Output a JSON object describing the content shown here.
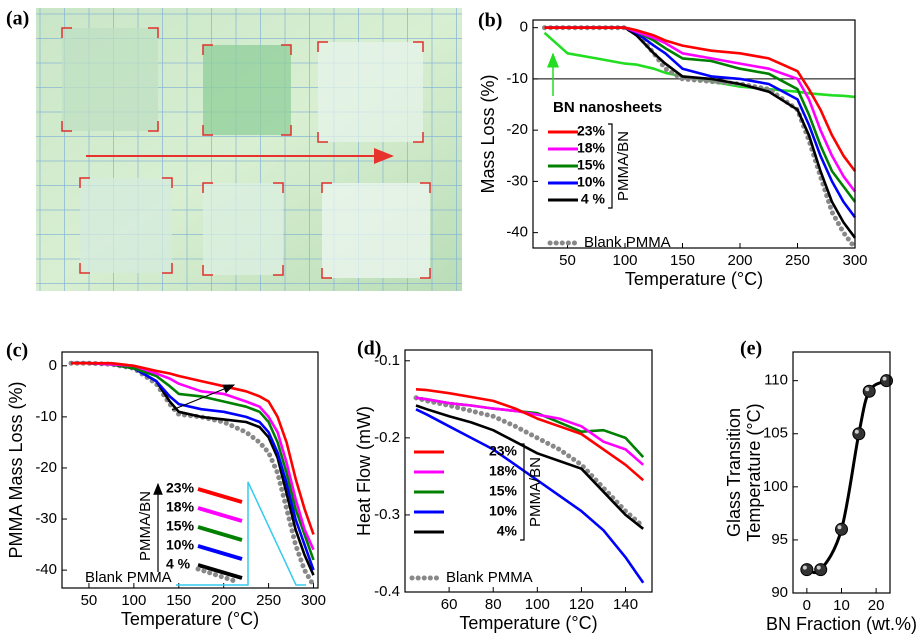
{
  "photo": {
    "label": "(a)"
  },
  "chart_data": [
    {
      "type": "line",
      "label": "(b)",
      "xlabel": "Temperature (°C)",
      "ylabel": "Mass Loss (%)",
      "x": [
        30,
        50,
        75,
        100,
        110,
        125,
        135,
        150,
        175,
        200,
        225,
        250,
        260,
        270,
        280,
        290,
        300
      ],
      "xlim": [
        20,
        300
      ],
      "xticks": [
        50,
        100,
        150,
        200,
        250,
        300
      ],
      "ylim": [
        -43,
        1.5
      ],
      "yticks": [
        0,
        -10,
        -20,
        -30,
        -40
      ],
      "hline": -10,
      "legend_title": "PMMA/BN",
      "series": [
        {
          "name": "23%",
          "color": "#ff0000",
          "values": [
            0,
            0,
            0,
            0,
            -0.5,
            -1.5,
            -2.5,
            -3.5,
            -4.5,
            -5,
            -6,
            -8.5,
            -12,
            -16,
            -21,
            -25,
            -28
          ]
        },
        {
          "name": "18%",
          "color": "#ff00ff",
          "values": [
            0,
            0,
            0,
            0,
            -0.8,
            -2,
            -3,
            -5,
            -6,
            -7,
            -8,
            -10,
            -14,
            -20,
            -25,
            -29,
            -32
          ]
        },
        {
          "name": "15%",
          "color": "#008000",
          "values": [
            0,
            0,
            0,
            0,
            -0.8,
            -2.5,
            -4,
            -6,
            -6.5,
            -8,
            -9,
            -12,
            -17,
            -23,
            -28,
            -31,
            -34
          ]
        },
        {
          "name": "10%",
          "color": "#0000ff",
          "values": [
            0,
            0,
            0,
            0,
            -1,
            -3.5,
            -5,
            -8,
            -9.5,
            -10,
            -11,
            -14,
            -19,
            -25,
            -30,
            -34,
            -37
          ]
        },
        {
          "name": "4 %",
          "color": "#000000",
          "values": [
            0,
            0,
            0,
            0,
            -1.5,
            -5,
            -7,
            -9.5,
            -10,
            -11,
            -12.5,
            -16,
            -21,
            -28,
            -34,
            -38,
            -41
          ]
        },
        {
          "name": "Blank PMMA",
          "color": "#888888",
          "dash": "dotted",
          "values": [
            0,
            0,
            0,
            0,
            -1,
            -5,
            -8,
            -10,
            -10.5,
            -11,
            -12,
            -16,
            -22,
            -29,
            -36,
            -40,
            -43
          ]
        }
      ],
      "annotation_series": {
        "name": "BN nanosheets",
        "color": "#22dd22",
        "values": [
          -1,
          -5,
          -6,
          -7,
          -7.2,
          -8,
          -8.8,
          -9.5,
          -10.5,
          -11.5,
          -12,
          -12.5,
          -12.8,
          -13,
          -13.2,
          -13.3,
          -13.5
        ]
      }
    },
    {
      "type": "line",
      "label": "(c)",
      "xlabel": "Temperature (°C)",
      "ylabel": "PMMA Mass Loss (%)",
      "x": [
        30,
        50,
        75,
        100,
        125,
        140,
        150,
        175,
        200,
        225,
        240,
        250,
        260,
        270,
        280,
        290,
        300
      ],
      "xlim": [
        20,
        305
      ],
      "xticks": [
        50,
        100,
        150,
        200,
        250,
        300
      ],
      "ylim": [
        -43.5,
        2.7
      ],
      "yticks": [
        0,
        -10,
        -20,
        -30,
        -40
      ],
      "legend_title": "PMMA/BN",
      "series": [
        {
          "name": "23%",
          "color": "#ff0000",
          "values": [
            0.5,
            0.5,
            0.5,
            0,
            -1,
            -1.5,
            -2,
            -3,
            -4,
            -5,
            -6,
            -7,
            -10,
            -15,
            -22,
            -28,
            -33
          ]
        },
        {
          "name": "18%",
          "color": "#ff00ff",
          "values": [
            0.5,
            0.5,
            0.3,
            0,
            -1.5,
            -2.5,
            -3.5,
            -5,
            -5.5,
            -7,
            -8,
            -10,
            -13,
            -19,
            -26,
            -32,
            -36
          ]
        },
        {
          "name": "15%",
          "color": "#008000",
          "values": [
            0.5,
            0.5,
            0.3,
            -0.5,
            -2,
            -4,
            -5.5,
            -6,
            -7,
            -8,
            -9,
            -11,
            -15,
            -21,
            -28,
            -33,
            -38
          ]
        },
        {
          "name": "10%",
          "color": "#0000ff",
          "values": [
            0.5,
            0.5,
            0.3,
            -0.5,
            -3,
            -6,
            -7.5,
            -8.5,
            -9,
            -10,
            -11,
            -13,
            -17,
            -23,
            -30,
            -35,
            -40
          ]
        },
        {
          "name": "4 %",
          "color": "#000000",
          "values": [
            0.5,
            0.5,
            0.3,
            -0.5,
            -3,
            -7,
            -9,
            -10,
            -10.5,
            -11,
            -12,
            -14,
            -18,
            -25,
            -32,
            -37,
            -41
          ]
        },
        {
          "name": "Blank PMMA",
          "color": "#888888",
          "dash": "dotted",
          "values": [
            0.5,
            0.5,
            0.3,
            -0.5,
            -3.5,
            -7.5,
            -9.5,
            -10,
            -11,
            -13,
            -15,
            -17,
            -21,
            -28,
            -35,
            -40,
            -43
          ]
        }
      ]
    },
    {
      "type": "line",
      "label": "(d)",
      "xlabel": "Temperature (°C)",
      "ylabel": "Heat Flow (mW)",
      "x": [
        45,
        50,
        60,
        70,
        80,
        90,
        100,
        110,
        120,
        130,
        140,
        148
      ],
      "xlim": [
        40,
        152
      ],
      "xticks": [
        60,
        80,
        100,
        120,
        140
      ],
      "ylim": [
        -0.4,
        -0.086
      ],
      "yticks": [
        -0.1,
        -0.2,
        -0.3,
        -0.4
      ],
      "legend_title": "PMMA/BN",
      "series": [
        {
          "name": "23%",
          "color": "#ff0000",
          "values": [
            -0.137,
            -0.138,
            -0.142,
            -0.147,
            -0.152,
            -0.162,
            -0.175,
            -0.185,
            -0.195,
            -0.215,
            -0.235,
            -0.255
          ]
        },
        {
          "name": "18%",
          "color": "#ff00ff",
          "values": [
            -0.148,
            -0.15,
            -0.155,
            -0.158,
            -0.162,
            -0.165,
            -0.17,
            -0.175,
            -0.185,
            -0.205,
            -0.215,
            -0.235
          ]
        },
        {
          "name": "15%",
          "color": "#008000",
          "values": [
            -0.148,
            -0.15,
            -0.155,
            -0.158,
            -0.162,
            -0.165,
            -0.168,
            -0.18,
            -0.192,
            -0.19,
            -0.2,
            -0.225
          ]
        },
        {
          "name": "10%",
          "color": "#0000ff",
          "values": [
            -0.163,
            -0.17,
            -0.185,
            -0.2,
            -0.215,
            -0.235,
            -0.255,
            -0.275,
            -0.295,
            -0.32,
            -0.355,
            -0.388
          ]
        },
        {
          "name": "4%",
          "color": "#000000",
          "values": [
            -0.158,
            -0.163,
            -0.172,
            -0.18,
            -0.19,
            -0.205,
            -0.22,
            -0.23,
            -0.24,
            -0.27,
            -0.3,
            -0.318
          ]
        },
        {
          "name": "Blank PMMA",
          "color": "#888888",
          "dash": "dotted",
          "values": [
            -0.148,
            -0.152,
            -0.158,
            -0.165,
            -0.172,
            -0.185,
            -0.2,
            -0.215,
            -0.235,
            -0.265,
            -0.295,
            -0.315
          ]
        }
      ]
    },
    {
      "type": "scatter",
      "label": "(e)",
      "xlabel": "BN Fraction (wt.%)",
      "ylabel": [
        "Glass Transition",
        "Temperature (°C)"
      ],
      "x": [
        0,
        4,
        10,
        15,
        18,
        23
      ],
      "values": [
        92.2,
        92.2,
        96,
        105,
        109,
        110
      ],
      "color": "#333333",
      "xlim": [
        -4,
        24
      ],
      "xticks": [
        0,
        10,
        20
      ],
      "ylim": [
        90,
        112.7
      ],
      "yticks": [
        90,
        95,
        100,
        105,
        110
      ]
    }
  ]
}
